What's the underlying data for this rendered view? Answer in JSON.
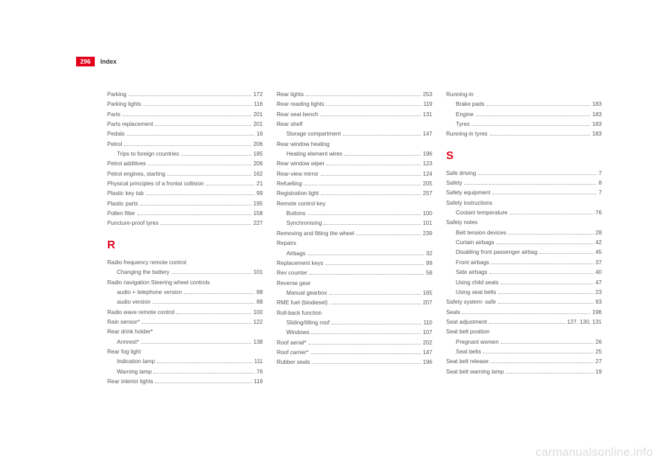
{
  "header": {
    "page_number": "296",
    "section": "Index"
  },
  "watermark": "carmanualsonline.info",
  "letters": {
    "R": "R",
    "S": "S"
  },
  "col1": [
    {
      "label": "Parking",
      "page": "172"
    },
    {
      "label": "Parking lights",
      "page": "116"
    },
    {
      "label": "Parts",
      "page": "201"
    },
    {
      "label": "Parts replacement",
      "page": "201"
    },
    {
      "label": "Pedals",
      "page": "16"
    },
    {
      "label": "Petrol",
      "page": "206"
    },
    {
      "label": "Trips to foreign countries",
      "page": "185",
      "sub": true
    },
    {
      "label": "Petrol additives",
      "page": "206"
    },
    {
      "label": "Petrol engines, starting",
      "page": "162"
    },
    {
      "label": "Physical principles of a frontal collision",
      "page": "21"
    },
    {
      "label": "Plastic key tab",
      "page": "99"
    },
    {
      "label": "Plastic parts",
      "page": "195"
    },
    {
      "label": "Pollen filter",
      "page": "158"
    },
    {
      "label": "Puncture-proof tyres",
      "page": "227"
    },
    {
      "letter": "R"
    },
    {
      "label": "Radio frequency remote control"
    },
    {
      "label": "Changing the battery",
      "page": "101",
      "sub": true
    },
    {
      "label": "Radio navigation Steering wheel controls"
    },
    {
      "label": "audio + telephone version",
      "page": "88",
      "sub": true
    },
    {
      "label": "audio version",
      "page": "88",
      "sub": true
    },
    {
      "label": "Radio wave remote control",
      "page": "100"
    },
    {
      "label": "Rain sensor*",
      "page": "122"
    },
    {
      "label": "Rear drink holder*"
    },
    {
      "label": "Armrest*",
      "page": "138",
      "sub": true
    },
    {
      "label": "Rear fog light"
    },
    {
      "label": "Indication lamp",
      "page": "111",
      "sub": true
    },
    {
      "label": "Warning lamp",
      "page": "76",
      "sub": true
    },
    {
      "label": "Rear interior lights",
      "page": "119"
    }
  ],
  "col2": [
    {
      "label": "Rear lights",
      "page": "253"
    },
    {
      "label": "Rear reading lights",
      "page": "119"
    },
    {
      "label": "Rear seat bench",
      "page": "131"
    },
    {
      "label": "Rear shelf"
    },
    {
      "label": "Storage compartment",
      "page": "147",
      "sub": true
    },
    {
      "label": "Rear window heating"
    },
    {
      "label": "Heating element wires",
      "page": "196",
      "sub": true
    },
    {
      "label": "Rear window wiper",
      "page": "123"
    },
    {
      "label": "Rear-view mirror",
      "page": "124"
    },
    {
      "label": "Refuelling",
      "page": "205"
    },
    {
      "label": "Registration light",
      "page": "257"
    },
    {
      "label": "Remote control key"
    },
    {
      "label": "Buttons",
      "page": "100",
      "sub": true
    },
    {
      "label": "Synchronising",
      "page": "101",
      "sub": true
    },
    {
      "label": "Removing and fitting the wheel",
      "page": "239"
    },
    {
      "label": "Repairs"
    },
    {
      "label": "Airbags",
      "page": "32",
      "sub": true
    },
    {
      "label": "Replacement keys",
      "page": "99"
    },
    {
      "label": "Rev counter",
      "page": "58"
    },
    {
      "label": "Reverse gear"
    },
    {
      "label": "Manual gearbox",
      "page": "165",
      "sub": true
    },
    {
      "label": "RME fuel (biodiesel)",
      "page": "207"
    },
    {
      "label": "Roll-back function"
    },
    {
      "label": "Sliding/tilting roof",
      "page": "110",
      "sub": true
    },
    {
      "label": "Windows",
      "page": "107",
      "sub": true
    },
    {
      "label": "Roof aerial*",
      "page": "202"
    },
    {
      "label": "Roof carrier*",
      "page": "147"
    },
    {
      "label": "Rubber seals",
      "page": "196"
    }
  ],
  "col3": [
    {
      "label": "Running-in"
    },
    {
      "label": "Brake pads",
      "page": "183",
      "sub": true
    },
    {
      "label": "Engine",
      "page": "183",
      "sub": true
    },
    {
      "label": "Tyres",
      "page": "183",
      "sub": true
    },
    {
      "label": "Running-in tyres",
      "page": "183"
    },
    {
      "letter": "S"
    },
    {
      "label": "Safe driving",
      "page": "7"
    },
    {
      "label": "Safety",
      "page": "8"
    },
    {
      "label": "Safety equipment",
      "page": "7"
    },
    {
      "label": "Safety instructions"
    },
    {
      "label": "Coolant temperature",
      "page": "76",
      "sub": true
    },
    {
      "label": "Safety notes"
    },
    {
      "label": "Belt tension devices",
      "page": "28",
      "sub": true
    },
    {
      "label": "Curtain airbags",
      "page": "42",
      "sub": true
    },
    {
      "label": "Disabling front passenger airbag",
      "page": "45",
      "sub": true
    },
    {
      "label": "Front airbags",
      "page": "37",
      "sub": true
    },
    {
      "label": "Side airbags",
      "page": "40",
      "sub": true
    },
    {
      "label": "Using child seats",
      "page": "47",
      "sub": true
    },
    {
      "label": "Using seat belts",
      "page": "23",
      "sub": true
    },
    {
      "label": "Safety system- safe",
      "page": "93"
    },
    {
      "label": "Seals",
      "page": "196"
    },
    {
      "label": "Seat adjustment",
      "page": "127, 130, 131"
    },
    {
      "label": "Seat belt position"
    },
    {
      "label": "Pregnant women",
      "page": "26",
      "sub": true
    },
    {
      "label": "Seat belts",
      "page": "25",
      "sub": true
    },
    {
      "label": "Seat belt release",
      "page": "27"
    },
    {
      "label": "Seat belt warning lamp",
      "page": "19"
    }
  ]
}
